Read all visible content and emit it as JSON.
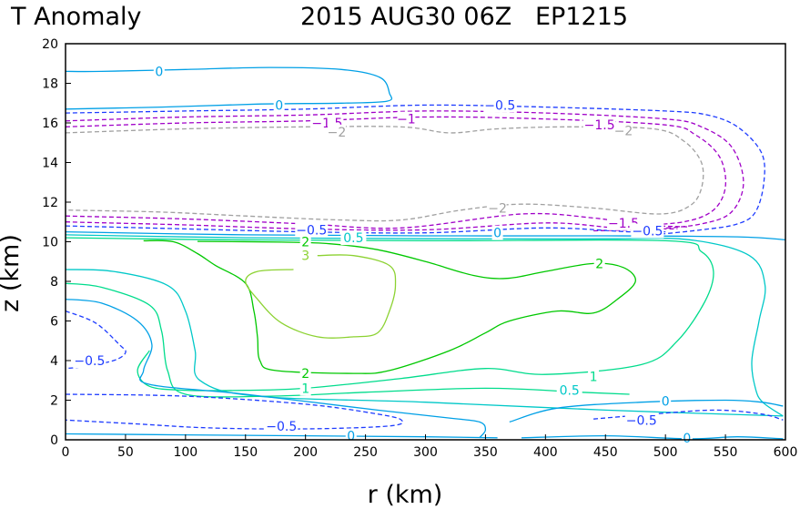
{
  "chart_data": {
    "type": "contour",
    "title_left": "T Anomaly",
    "title_right": "2015 AUG30 06Z   EP1215",
    "xlabel": "r (km)",
    "ylabel": "z (km)",
    "xlim": [
      0,
      600
    ],
    "ylim": [
      0,
      20
    ],
    "x_ticks": [
      "0",
      "50",
      "100",
      "150",
      "200",
      "250",
      "300",
      "350",
      "400",
      "450",
      "500",
      "550",
      "600"
    ],
    "y_ticks": [
      "0",
      "2",
      "4",
      "6",
      "8",
      "10",
      "12",
      "14",
      "16",
      "18",
      "20"
    ],
    "level_colors": {
      "-2": "#a0a0a0",
      "-1.5": "#a000c8",
      "-1": "#a000c8",
      "-0.5": "#1e3cff",
      "0": "#00a0e6",
      "0.5": "#00c8c8",
      "1": "#00dc8c",
      "2": "#00c800",
      "3": "#8cd232"
    },
    "contours": [
      {
        "level": "0",
        "dashed": false,
        "points": [
          [
            0,
            18.6
          ],
          [
            30,
            18.6
          ],
          [
            100,
            18.7
          ],
          [
            170,
            18.8
          ],
          [
            230,
            18.7
          ],
          [
            262,
            18.3
          ],
          [
            270,
            17.5
          ],
          [
            268,
            17.1
          ],
          [
            230,
            17.0
          ],
          [
            160,
            16.95
          ],
          [
            80,
            16.8
          ],
          [
            0,
            16.7
          ]
        ]
      },
      {
        "level": "-0.5",
        "dashed": true,
        "points": [
          [
            0,
            16.5
          ],
          [
            100,
            16.6
          ],
          [
            200,
            16.7
          ],
          [
            300,
            16.9
          ],
          [
            400,
            16.8
          ],
          [
            500,
            16.6
          ],
          [
            535,
            16.4
          ],
          [
            560,
            15.8
          ],
          [
            580,
            14.5
          ],
          [
            582,
            13.0
          ],
          [
            575,
            11.5
          ],
          [
            560,
            10.9
          ],
          [
            530,
            10.6
          ],
          [
            490,
            10.35
          ]
        ]
      },
      {
        "level": "-1",
        "dashed": true,
        "points": [
          [
            0,
            16.1
          ],
          [
            100,
            16.3
          ],
          [
            200,
            16.4
          ],
          [
            300,
            16.6
          ],
          [
            400,
            16.5
          ],
          [
            500,
            16.2
          ],
          [
            530,
            15.8
          ],
          [
            555,
            14.8
          ],
          [
            565,
            13.0
          ],
          [
            555,
            11.5
          ],
          [
            530,
            10.9
          ],
          [
            490,
            10.65
          ],
          [
            440,
            10.55
          ]
        ]
      },
      {
        "level": "-1.5",
        "dashed": true,
        "points": [
          [
            0,
            15.8
          ],
          [
            100,
            16.0
          ],
          [
            200,
            16.1
          ],
          [
            300,
            16.3
          ],
          [
            400,
            16.2
          ],
          [
            500,
            15.9
          ],
          [
            525,
            15.4
          ],
          [
            545,
            14.3
          ],
          [
            550,
            12.8
          ],
          [
            540,
            11.6
          ],
          [
            515,
            11.0
          ],
          [
            470,
            10.8
          ]
        ]
      },
      {
        "level": "-2",
        "dashed": true,
        "points": [
          [
            0,
            15.5
          ],
          [
            100,
            15.7
          ],
          [
            200,
            15.8
          ],
          [
            280,
            15.8
          ],
          [
            320,
            15.5
          ],
          [
            360,
            15.7
          ],
          [
            420,
            15.8
          ],
          [
            490,
            15.7
          ],
          [
            515,
            15.1
          ],
          [
            530,
            14.0
          ],
          [
            530,
            12.7
          ],
          [
            520,
            11.8
          ],
          [
            495,
            11.4
          ],
          [
            440,
            11.7
          ],
          [
            380,
            11.9
          ],
          [
            330,
            11.6
          ],
          [
            280,
            11.1
          ],
          [
            230,
            11.1
          ],
          [
            150,
            11.3
          ],
          [
            80,
            11.5
          ],
          [
            0,
            11.6
          ]
        ]
      },
      {
        "level": "-1.5",
        "dashed": true,
        "points": [
          [
            0,
            11.3
          ],
          [
            100,
            11.15
          ],
          [
            200,
            10.9
          ],
          [
            280,
            10.7
          ],
          [
            380,
            11.4
          ],
          [
            440,
            11.2
          ],
          [
            480,
            10.85
          ],
          [
            520,
            10.75
          ]
        ]
      },
      {
        "level": "-1",
        "dashed": true,
        "points": [
          [
            0,
            11.0
          ],
          [
            100,
            10.85
          ],
          [
            200,
            10.65
          ],
          [
            300,
            10.6
          ],
          [
            400,
            10.95
          ],
          [
            460,
            10.7
          ],
          [
            510,
            10.65
          ]
        ]
      },
      {
        "level": "-0.5",
        "dashed": true,
        "points": [
          [
            0,
            10.8
          ],
          [
            100,
            10.65
          ],
          [
            200,
            10.5
          ],
          [
            300,
            10.45
          ],
          [
            400,
            10.7
          ],
          [
            470,
            10.5
          ],
          [
            500,
            10.5
          ]
        ]
      },
      {
        "level": "0",
        "dashed": false,
        "points": [
          [
            0,
            10.5
          ],
          [
            150,
            10.35
          ],
          [
            300,
            10.3
          ],
          [
            450,
            10.3
          ],
          [
            560,
            10.25
          ],
          [
            600,
            10.1
          ]
        ]
      },
      {
        "level": "0.5",
        "dashed": false,
        "points": [
          [
            0,
            10.35
          ],
          [
            150,
            10.2
          ],
          [
            300,
            10.15
          ],
          [
            450,
            10.15
          ],
          [
            520,
            10.1
          ],
          [
            570,
            9.3
          ],
          [
            583,
            7.8
          ],
          [
            578,
            6.0
          ],
          [
            572,
            4.0
          ],
          [
            575,
            2.6
          ],
          [
            581,
            1.9
          ],
          [
            598,
            1.2
          ]
        ]
      },
      {
        "level": "1",
        "dashed": false,
        "points": [
          [
            0,
            10.2
          ],
          [
            130,
            10.1
          ],
          [
            300,
            10.05
          ],
          [
            500,
            10.05
          ],
          [
            530,
            9.5
          ],
          [
            540,
            8.5
          ],
          [
            533,
            7.0
          ],
          [
            510,
            5.0
          ],
          [
            480,
            3.8
          ],
          [
            400,
            3.3
          ],
          [
            350,
            3.6
          ],
          [
            280,
            3.1
          ],
          [
            200,
            2.6
          ],
          [
            150,
            2.5
          ],
          [
            100,
            2.5
          ],
          [
            70,
            2.7
          ],
          [
            60,
            3.5
          ],
          [
            70,
            4.5
          ]
        ]
      },
      {
        "level": "2",
        "dashed": false,
        "points": [
          [
            65,
            10.05
          ],
          [
            90,
            10.0
          ],
          [
            110,
            9.4
          ],
          [
            125,
            8.8
          ],
          [
            150,
            7.9
          ],
          [
            157,
            6.5
          ],
          [
            160,
            5.2
          ],
          [
            162,
            4.0
          ],
          [
            175,
            3.5
          ],
          [
            240,
            3.35
          ],
          [
            270,
            3.5
          ],
          [
            320,
            4.5
          ],
          [
            350,
            5.4
          ],
          [
            370,
            6.0
          ],
          [
            410,
            6.5
          ],
          [
            440,
            6.4
          ],
          [
            460,
            7.1
          ],
          [
            475,
            8.0
          ],
          [
            465,
            8.7
          ],
          [
            440,
            8.9
          ],
          [
            400,
            8.5
          ],
          [
            368,
            8.15
          ],
          [
            340,
            8.3
          ],
          [
            300,
            9.0
          ],
          [
            260,
            9.6
          ],
          [
            220,
            9.9
          ],
          [
            180,
            9.98
          ],
          [
            110,
            10.02
          ]
        ]
      },
      {
        "level": "3",
        "dashed": false,
        "points": [
          [
            190,
            8.6
          ],
          [
            160,
            8.5
          ],
          [
            150,
            8.0
          ],
          [
            160,
            7.1
          ],
          [
            180,
            5.9
          ],
          [
            210,
            5.2
          ],
          [
            240,
            5.2
          ],
          [
            260,
            5.4
          ],
          [
            270,
            6.5
          ],
          [
            275,
            7.8
          ],
          [
            270,
            8.8
          ],
          [
            240,
            9.3
          ],
          [
            210,
            9.3
          ]
        ]
      },
      {
        "level": "0.5",
        "dashed": false,
        "points": [
          [
            0,
            8.6
          ],
          [
            40,
            8.5
          ],
          [
            85,
            7.8
          ],
          [
            100,
            6.5
          ],
          [
            108,
            4.5
          ],
          [
            112,
            3.0
          ],
          [
            160,
            2.2
          ],
          [
            300,
            1.9
          ],
          [
            450,
            1.5
          ],
          [
            598,
            1.2
          ]
        ]
      },
      {
        "level": "1",
        "dashed": false,
        "points": [
          [
            0,
            7.9
          ],
          [
            30,
            7.7
          ],
          [
            70,
            6.8
          ],
          [
            80,
            5.5
          ],
          [
            85,
            3.5
          ],
          [
            100,
            2.3
          ],
          [
            170,
            2.2
          ],
          [
            250,
            2.4
          ],
          [
            350,
            2.6
          ],
          [
            430,
            2.4
          ],
          [
            470,
            2.3
          ]
        ]
      },
      {
        "level": "0",
        "dashed": false,
        "points": [
          [
            0,
            7.1
          ],
          [
            30,
            6.9
          ],
          [
            60,
            6.0
          ],
          [
            72,
            4.8
          ],
          [
            65,
            3.5
          ],
          [
            70,
            2.8
          ],
          [
            150,
            2.3
          ],
          [
            260,
            1.5
          ],
          [
            320,
            1.1
          ],
          [
            345,
            0.9
          ],
          [
            350,
            0.5
          ],
          [
            345,
            0.1
          ]
        ]
      },
      {
        "level": "0",
        "dashed": false,
        "points": [
          [
            370,
            0.9
          ],
          [
            410,
            1.6
          ],
          [
            480,
            1.9
          ],
          [
            550,
            2.0
          ],
          [
            580,
            1.9
          ],
          [
            598,
            1.7
          ]
        ]
      },
      {
        "level": "-0.5",
        "dashed": true,
        "points": [
          [
            0,
            6.5
          ],
          [
            25,
            5.9
          ],
          [
            45,
            4.8
          ],
          [
            50,
            4.4
          ],
          [
            40,
            4.0
          ],
          [
            15,
            3.7
          ],
          [
            0,
            3.6
          ]
        ]
      },
      {
        "level": "-0.5",
        "dashed": true,
        "points": [
          [
            0,
            2.3
          ],
          [
            100,
            2.2
          ],
          [
            200,
            1.8
          ],
          [
            260,
            1.3
          ],
          [
            280,
            1.0
          ],
          [
            270,
            0.7
          ],
          [
            200,
            0.55
          ],
          [
            120,
            0.6
          ],
          [
            60,
            0.8
          ],
          [
            0,
            1.0
          ]
        ]
      },
      {
        "level": "-0.5",
        "dashed": true,
        "points": [
          [
            440,
            1.05
          ],
          [
            480,
            1.25
          ],
          [
            540,
            1.5
          ],
          [
            580,
            1.3
          ],
          [
            598,
            1.0
          ]
        ]
      },
      {
        "level": "0",
        "dashed": false,
        "points": [
          [
            0,
            0.3
          ],
          [
            100,
            0.25
          ],
          [
            200,
            0.2
          ],
          [
            300,
            0.15
          ],
          [
            360,
            0.1
          ]
        ]
      },
      {
        "level": "0",
        "dashed": false,
        "points": [
          [
            380,
            0.1
          ],
          [
            450,
            0.2
          ],
          [
            520,
            0.05
          ],
          [
            560,
            0.15
          ],
          [
            598,
            0.05
          ]
        ]
      }
    ],
    "labels": [
      {
        "text": "0",
        "level": "0",
        "x": 78,
        "y": 18.6
      },
      {
        "text": "0",
        "level": "0",
        "x": 178,
        "y": 16.9
      },
      {
        "text": "-0.5",
        "level": "-0.5",
        "x": 362,
        "y": 16.9
      },
      {
        "text": "-1",
        "level": "-1",
        "x": 284,
        "y": 16.2
      },
      {
        "text": "-1.5",
        "level": "-1.5",
        "x": 218,
        "y": 16.0
      },
      {
        "text": "-1.5",
        "level": "-1.5",
        "x": 445,
        "y": 15.9
      },
      {
        "text": "-2",
        "level": "-2",
        "x": 226,
        "y": 15.55
      },
      {
        "text": "-2",
        "level": "-2",
        "x": 465,
        "y": 15.6
      },
      {
        "text": "-2",
        "level": "-2",
        "x": 360,
        "y": 11.7
      },
      {
        "text": "-1.5",
        "level": "-1.5",
        "x": 465,
        "y": 10.95
      },
      {
        "text": "-0.5",
        "level": "-0.5",
        "x": 205,
        "y": 10.6
      },
      {
        "text": "-0.5",
        "level": "-0.5",
        "x": 485,
        "y": 10.55
      },
      {
        "text": "0",
        "level": "0",
        "x": 360,
        "y": 10.45
      },
      {
        "text": "0.5",
        "level": "0.5",
        "x": 240,
        "y": 10.2
      },
      {
        "text": "2",
        "level": "2",
        "x": 200,
        "y": 10.0
      },
      {
        "text": "3",
        "level": "3",
        "x": 200,
        "y": 9.3
      },
      {
        "text": "2",
        "level": "2",
        "x": 445,
        "y": 8.9
      },
      {
        "text": "-0.5",
        "level": "-0.5",
        "x": 20,
        "y": 4.0
      },
      {
        "text": "2",
        "level": "2",
        "x": 200,
        "y": 3.35
      },
      {
        "text": "1",
        "level": "1",
        "x": 200,
        "y": 2.6
      },
      {
        "text": "1",
        "level": "1",
        "x": 440,
        "y": 3.2
      },
      {
        "text": "0.5",
        "level": "0.5",
        "x": 420,
        "y": 2.5
      },
      {
        "text": "0",
        "level": "0",
        "x": 500,
        "y": 1.95
      },
      {
        "text": "-0.5",
        "level": "-0.5",
        "x": 480,
        "y": 1.0
      },
      {
        "text": "-0.5",
        "level": "-0.5",
        "x": 180,
        "y": 0.7
      },
      {
        "text": "0",
        "level": "0",
        "x": 238,
        "y": 0.2
      },
      {
        "text": "0",
        "level": "0",
        "x": 518,
        "y": 0.1
      }
    ]
  }
}
